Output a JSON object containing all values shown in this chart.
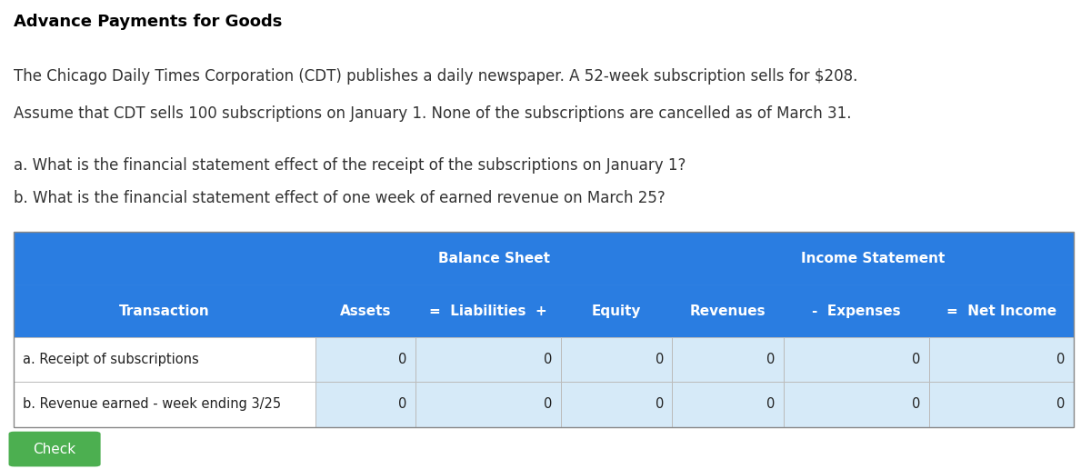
{
  "title": "Advance Payments for Goods",
  "paragraph1": "The Chicago Daily Times Corporation (CDT) publishes a daily newspaper. A 52-week subscription sells for $208.",
  "paragraph2": "Assume that CDT sells 100 subscriptions on January 1. None of the subscriptions are cancelled as of March 31.",
  "question_a": "a. What is the financial statement effect of the receipt of the subscriptions on January 1?",
  "question_b": "b. What is the financial statement effect of one week of earned revenue on March 25?",
  "header_bg_color": "#2A7DE1",
  "header_text_color": "#FFFFFF",
  "row_a_bg": "#FFFFFF",
  "row_b_bg": "#FFFFFF",
  "cell_bg_light": "#D6EAF8",
  "cell_bg_lighter": "#E8F4FB",
  "title_fontsize": 13,
  "body_fontsize": 12,
  "table_header_fontsize": 11,
  "check_button_color": "#4CAF50",
  "check_button_text": "Check",
  "col_headers_row1": [
    "",
    "Balance Sheet",
    "",
    "",
    "Income Statement",
    "",
    ""
  ],
  "col_headers_row2": [
    "Transaction",
    "Assets",
    "=  Liabilities  +",
    "Equity",
    "Revenues",
    "-  Expenses",
    "=  Net Income"
  ],
  "rows": [
    [
      "a. Receipt of subscriptions",
      "0",
      "0",
      "0",
      "0",
      "0",
      "0"
    ],
    [
      "b. Revenue earned - week ending 3/25",
      "0",
      "0",
      "0",
      "0",
      "0",
      "0"
    ]
  ],
  "bg_color": "#FFFFFF"
}
